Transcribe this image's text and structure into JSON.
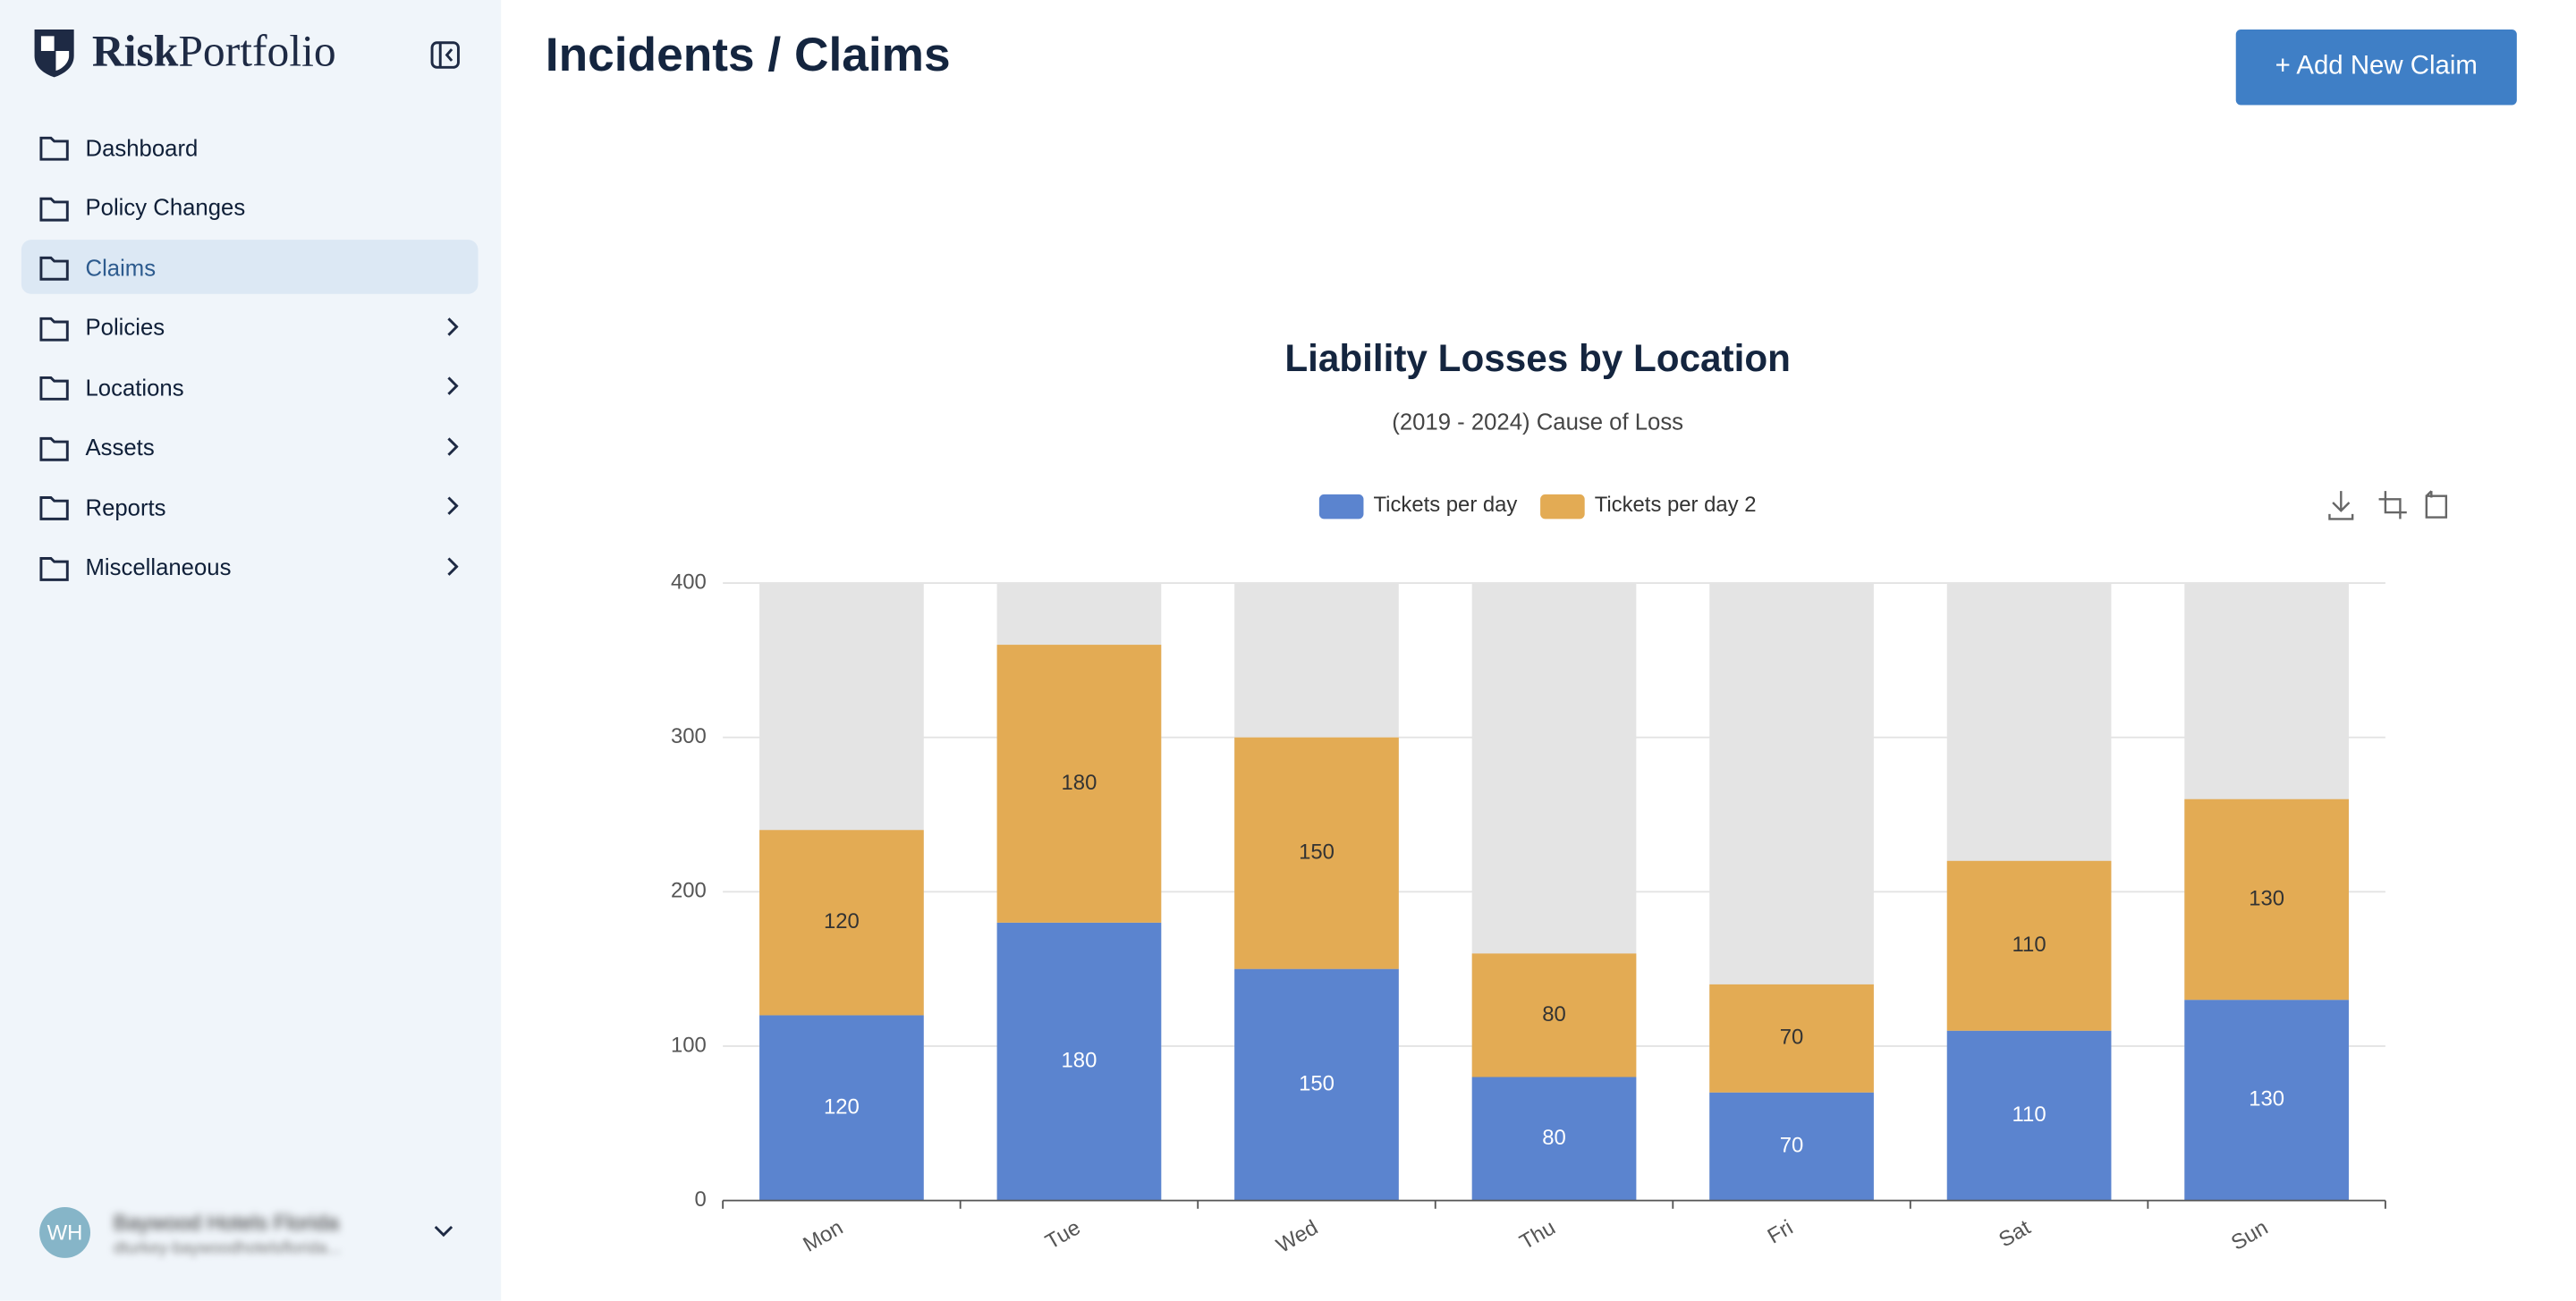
{
  "app": {
    "brand": {
      "bold": "Risk",
      "light": "Portfolio"
    },
    "nav": [
      "Dashboard",
      "Policy Changes",
      "Claims",
      "Policies",
      "Locations",
      "Assets",
      "Reports",
      "Miscellaneous"
    ],
    "active_nav": "Claims",
    "user": {
      "initials": "WH",
      "name": "Baywood Hotels Florida",
      "email": "dturkey-baywoodhotelsflorida..."
    },
    "page_title": "Incidents / Claims",
    "button": "+ Add New Claim"
  },
  "chart_data": {
    "type": "bar",
    "stacked": true,
    "title": "Liability Losses by Location",
    "subtitle": "(2019 - 2024) Cause of Loss",
    "categories": [
      "Mon",
      "Tue",
      "Wed",
      "Thu",
      "Fri",
      "Sat",
      "Sun"
    ],
    "series": [
      {
        "name": "Tickets per day",
        "color": "#5b84cf",
        "values": [
          120,
          180,
          150,
          80,
          70,
          110,
          130
        ]
      },
      {
        "name": "Tickets per day 2",
        "color": "#e3ab54",
        "values": [
          120,
          180,
          150,
          80,
          70,
          110,
          130
        ]
      }
    ],
    "background_color": "#e4e4e4",
    "ylim": [
      0,
      400
    ],
    "yticks": [
      0,
      100,
      200,
      300,
      400
    ],
    "grid": true,
    "legend": "top"
  }
}
